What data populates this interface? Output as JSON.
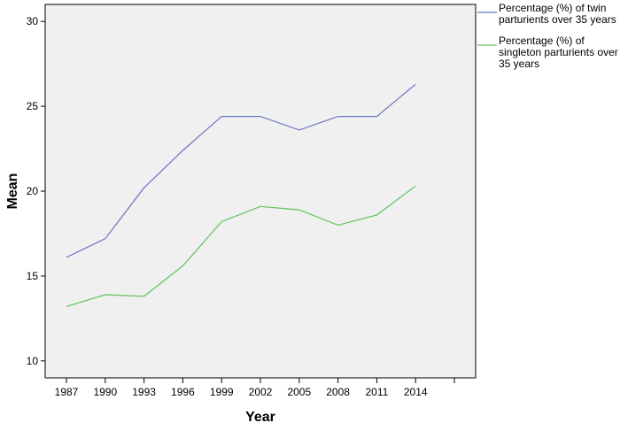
{
  "chart_data": {
    "type": "line",
    "categories": [
      "1987",
      "1990",
      "1993",
      "1996",
      "1999",
      "2002",
      "2005",
      "2008",
      "2011",
      "2014"
    ],
    "xlabel": "Year",
    "ylabel": "Mean",
    "ylim": [
      9,
      31
    ],
    "yticks": [
      10,
      15,
      20,
      25,
      30
    ],
    "grid": false,
    "legend_position": "top-right outside plot",
    "series": [
      {
        "name": "Percentage (%) of twin parturients over 35 years",
        "legend_lines": [
          "Percentage (%) of twin",
          "parturients over 35 years"
        ],
        "color": "#6b74c6",
        "values": [
          16.1,
          17.2,
          20.2,
          22.4,
          24.4,
          24.4,
          23.6,
          24.4,
          24.4,
          26.3
        ]
      },
      {
        "name": "Percentage (%) of singleton parturients over 35 years",
        "legend_lines": [
          "Percentage (%) of",
          "singleton parturients over",
          "35 years"
        ],
        "color": "#5ec45e",
        "values": [
          13.2,
          13.9,
          13.8,
          15.6,
          18.2,
          19.1,
          18.9,
          18.0,
          18.6,
          20.3
        ]
      }
    ]
  }
}
